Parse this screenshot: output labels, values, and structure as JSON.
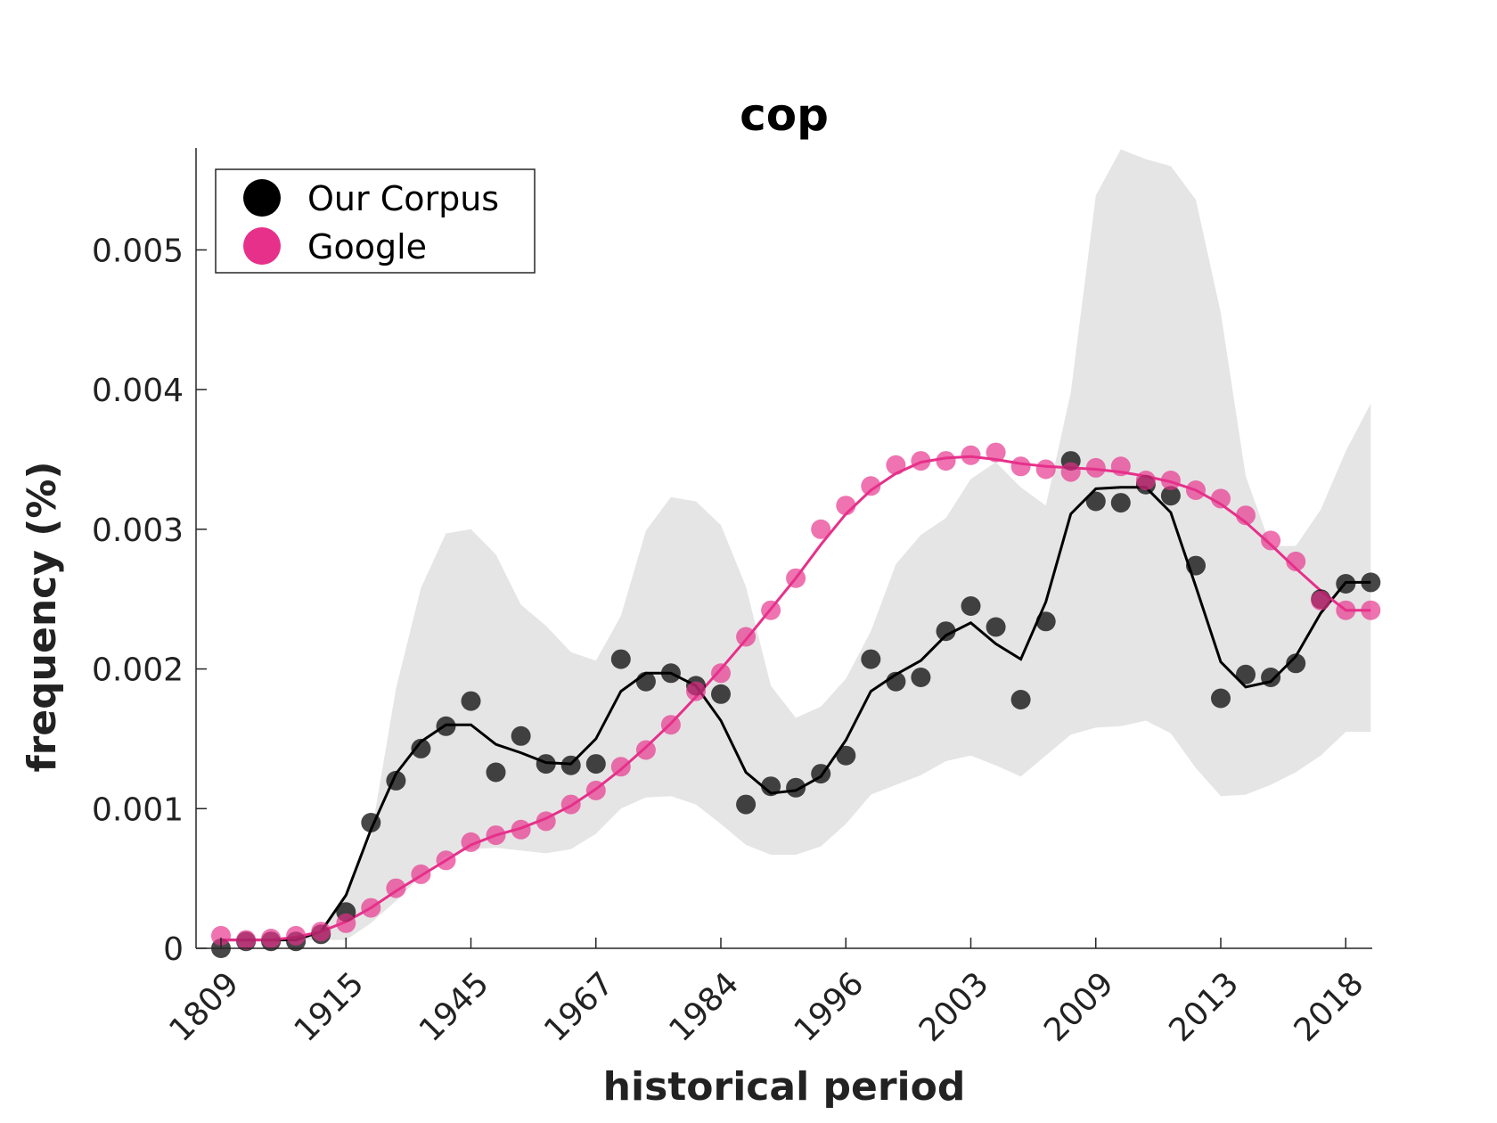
{
  "chart_data": {
    "type": "line",
    "title": "cop",
    "xlabel": "historical period",
    "ylabel": "frequency (%)",
    "xtick_labels": [
      "1809",
      "1915",
      "1945",
      "1967",
      "1984",
      "1996",
      "2003",
      "2009",
      "2013",
      "2018"
    ],
    "yticks": [
      0,
      0.001,
      0.002,
      0.003,
      0.004,
      0.005
    ],
    "ytick_labels": [
      "0",
      "0.001",
      "0.002",
      "0.003",
      "0.004",
      "0.005"
    ],
    "ylim": [
      0,
      0.00573
    ],
    "grid": false,
    "legend_position": "top-left",
    "n_periods": 47,
    "series": [
      {
        "name": "Our Corpus",
        "color": "#000000",
        "points": [
          0.0,
          5e-05,
          5e-05,
          5e-05,
          0.0001,
          0.00026,
          0.0009,
          0.0012,
          0.00143,
          0.00159,
          0.00177,
          0.00126,
          0.00152,
          0.00132,
          0.00131,
          0.00132,
          0.00207,
          0.00191,
          0.00197,
          0.00188,
          0.00182,
          0.00103,
          0.00116,
          0.00115,
          0.00125,
          0.00138,
          0.00207,
          0.00191,
          0.00194,
          0.00227,
          0.00245,
          0.0023,
          0.00178,
          0.00234,
          0.00349,
          0.0032,
          0.00319,
          0.00332,
          0.00324,
          0.00274,
          0.00179,
          0.00196,
          0.00194,
          0.00204,
          0.0025,
          0.00261,
          0.00262
        ],
        "smooth": [
          6e-05,
          6e-05,
          6e-05,
          6e-05,
          0.00012,
          0.00038,
          0.00085,
          0.00125,
          0.00148,
          0.0016,
          0.0016,
          0.00146,
          0.0014,
          0.00133,
          0.00132,
          0.0015,
          0.00184,
          0.00197,
          0.00197,
          0.00188,
          0.00163,
          0.00126,
          0.00111,
          0.00113,
          0.00123,
          0.00149,
          0.00184,
          0.00196,
          0.00206,
          0.00224,
          0.00233,
          0.00218,
          0.00207,
          0.00248,
          0.00311,
          0.00329,
          0.0033,
          0.0033,
          0.00312,
          0.00259,
          0.00205,
          0.00187,
          0.00191,
          0.00209,
          0.0024,
          0.00262,
          0.00262
        ],
        "band_upper": [
          6e-05,
          6e-05,
          6e-05,
          6e-05,
          0.00012,
          0.0004,
          0.0008,
          0.00186,
          0.00258,
          0.00297,
          0.003,
          0.00282,
          0.00246,
          0.00231,
          0.00212,
          0.00206,
          0.00238,
          0.00299,
          0.00323,
          0.0032,
          0.00303,
          0.00259,
          0.00188,
          0.00165,
          0.00173,
          0.00193,
          0.00227,
          0.00275,
          0.00296,
          0.00308,
          0.00336,
          0.00348,
          0.0033,
          0.00317,
          0.00398,
          0.00539,
          0.00572,
          0.00565,
          0.0056,
          0.00536,
          0.00455,
          0.00338,
          0.00288,
          0.00288,
          0.00314,
          0.00356,
          0.0039
        ],
        "band_lower": [
          6e-05,
          6e-05,
          6e-05,
          6e-05,
          6e-05,
          6e-05,
          0.00018,
          0.00034,
          0.00052,
          0.00066,
          0.00071,
          0.00072,
          0.0007,
          0.00068,
          0.00071,
          0.00082,
          0.001,
          0.00108,
          0.00109,
          0.00103,
          0.00089,
          0.00074,
          0.00067,
          0.00067,
          0.00073,
          0.00089,
          0.0011,
          0.00117,
          0.00124,
          0.00134,
          0.00138,
          0.00131,
          0.00123,
          0.00138,
          0.00153,
          0.00158,
          0.00159,
          0.00163,
          0.00154,
          0.00129,
          0.00109,
          0.0011,
          0.00117,
          0.00126,
          0.00138,
          0.00155,
          0.00155
        ]
      },
      {
        "name": "Google",
        "color": "#e6308a",
        "points": [
          9e-05,
          6e-05,
          7e-05,
          9e-05,
          0.00012,
          0.00018,
          0.00029,
          0.00043,
          0.00053,
          0.00063,
          0.00076,
          0.00081,
          0.00085,
          0.00091,
          0.00103,
          0.00113,
          0.0013,
          0.00142,
          0.0016,
          0.00184,
          0.00197,
          0.00223,
          0.00242,
          0.00265,
          0.003,
          0.00317,
          0.00331,
          0.00346,
          0.00349,
          0.00349,
          0.00353,
          0.00355,
          0.00345,
          0.00343,
          0.00341,
          0.00344,
          0.00345,
          0.00335,
          0.00335,
          0.00328,
          0.00322,
          0.0031,
          0.00292,
          0.00277,
          0.00249,
          0.00242,
          0.00242
        ],
        "smooth": [
          6e-05,
          6e-05,
          6e-05,
          8e-05,
          0.00012,
          0.00019,
          0.00029,
          0.00041,
          0.00052,
          0.00063,
          0.00074,
          0.00081,
          0.00086,
          0.00093,
          0.00102,
          0.00114,
          0.00128,
          0.00144,
          0.00161,
          0.0018,
          0.002,
          0.00221,
          0.00243,
          0.00265,
          0.00289,
          0.00311,
          0.00328,
          0.0034,
          0.00348,
          0.00351,
          0.00352,
          0.0035,
          0.00347,
          0.00345,
          0.00344,
          0.00343,
          0.00341,
          0.00338,
          0.00334,
          0.00328,
          0.00318,
          0.00305,
          0.00289,
          0.00272,
          0.00256,
          0.00242,
          0.00242
        ]
      }
    ]
  }
}
